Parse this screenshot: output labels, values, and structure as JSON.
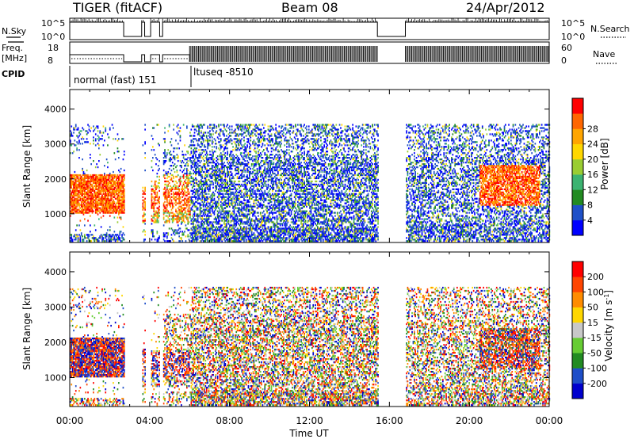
{
  "header": {
    "radar": "TIGER (fitACF)",
    "beam": "Beam 08",
    "date": "24/Apr/2012"
  },
  "strips": {
    "nsky_label": "N.Sky",
    "nsearch_label": "N.Search",
    "nsky_ticks": [
      "10^5",
      "10^0"
    ],
    "nsearch_ticks": [
      "10^5",
      "10^0"
    ],
    "freq_label_1": "Freq.",
    "freq_label_2": "[MHz]",
    "freq_ticks": [
      "18",
      "8"
    ],
    "nave_label": "Nave",
    "nave_ticks": [
      "60",
      "0"
    ],
    "cpid_label": "CPID",
    "cpid_1": "normal (fast) 151",
    "cpid_2": "ltuseq -8510"
  },
  "chart_data": [
    {
      "type": "heatmap",
      "title": "",
      "ylabel": "Slant Range [km]",
      "xlabel": "",
      "x_ticks": [
        "00:00",
        "04:00",
        "08:00",
        "12:00",
        "16:00",
        "20:00",
        "00:00"
      ],
      "x_range_hours": [
        0,
        24
      ],
      "y_ticks": [
        "1000",
        "2000",
        "3000",
        "4000"
      ],
      "y_range_km": [
        180,
        4560
      ],
      "data_gaps_hours": [
        [
          2.7,
          3.6
        ],
        [
          3.75,
          4.05
        ],
        [
          4.5,
          4.65
        ],
        [
          15.4,
          16.8
        ]
      ],
      "colorbar": {
        "label": "Power [dB]",
        "ticks": [
          "4",
          "8",
          "12",
          "16",
          "20",
          "24",
          "28"
        ],
        "colors": [
          "#0000ff",
          "#1e50c8",
          "#228b22",
          "#3cb371",
          "#9acd32",
          "#ffd700",
          "#ffa500",
          "#ff6600",
          "#ff0000"
        ]
      }
    },
    {
      "type": "heatmap",
      "title": "",
      "ylabel": "Slant Range [km]",
      "xlabel": "Time UT",
      "x_ticks": [
        "00:00",
        "04:00",
        "08:00",
        "12:00",
        "16:00",
        "20:00",
        "00:00"
      ],
      "x_range_hours": [
        0,
        24
      ],
      "y_ticks": [
        "1000",
        "2000",
        "3000",
        "4000"
      ],
      "y_range_km": [
        180,
        4560
      ],
      "data_gaps_hours": [
        [
          2.7,
          3.6
        ],
        [
          3.75,
          4.05
        ],
        [
          4.5,
          4.65
        ],
        [
          15.4,
          16.8
        ]
      ],
      "colorbar": {
        "label": "Velocity [m s^-1]",
        "ticks": [
          "200",
          "100",
          "50",
          "15",
          "-15",
          "-50",
          "-100",
          "-200"
        ],
        "colors": [
          "#0000cd",
          "#1e4ec8",
          "#228b22",
          "#66cc33",
          "#c8c8c8",
          "#ffd700",
          "#ff8c00",
          "#ff4500",
          "#ff0000"
        ]
      }
    }
  ]
}
